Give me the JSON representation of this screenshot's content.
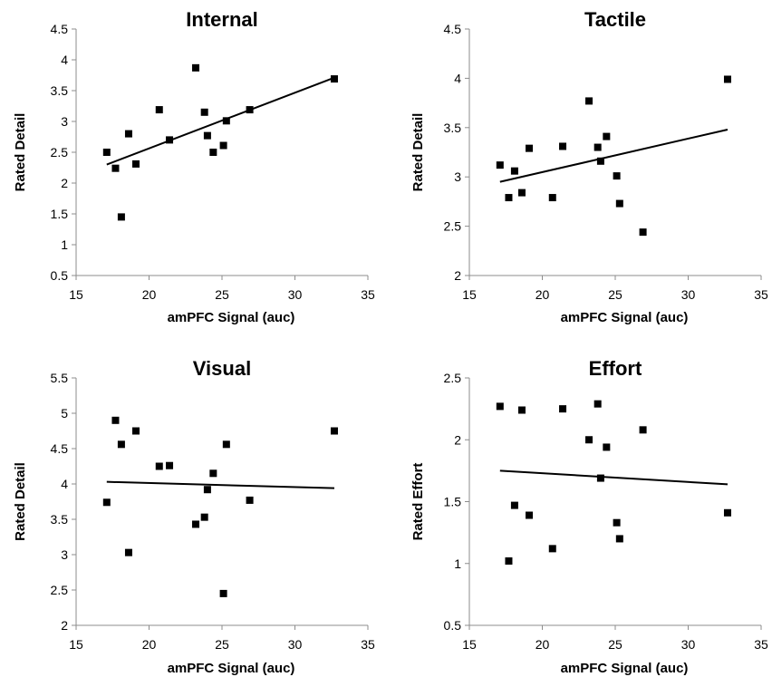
{
  "chart_data": [
    {
      "type": "scatter",
      "title": "Internal",
      "xlabel": "amPFC Signal (auc)",
      "ylabel": "Rated Detail",
      "xlim": [
        15,
        35
      ],
      "ylim": [
        0.5,
        4.5
      ],
      "xticks": [
        "15",
        "20",
        "25",
        "30",
        "35"
      ],
      "yticks": [
        "0.5",
        "1",
        "1.5",
        "2",
        "2.5",
        "3",
        "3.5",
        "4",
        "4.5"
      ],
      "points": [
        {
          "x": 17.1,
          "y": 2.5
        },
        {
          "x": 17.7,
          "y": 2.24
        },
        {
          "x": 18.1,
          "y": 1.45
        },
        {
          "x": 18.6,
          "y": 2.8
        },
        {
          "x": 19.1,
          "y": 2.31
        },
        {
          "x": 20.7,
          "y": 3.19
        },
        {
          "x": 21.4,
          "y": 2.7
        },
        {
          "x": 23.2,
          "y": 3.87
        },
        {
          "x": 23.8,
          "y": 3.15
        },
        {
          "x": 24.0,
          "y": 2.77
        },
        {
          "x": 24.4,
          "y": 2.5
        },
        {
          "x": 25.1,
          "y": 2.61
        },
        {
          "x": 25.3,
          "y": 3.01
        },
        {
          "x": 26.9,
          "y": 3.19
        },
        {
          "x": 32.7,
          "y": 3.69
        }
      ],
      "trendline": {
        "x": [
          17.1,
          32.7
        ],
        "y": [
          2.3,
          3.71
        ]
      }
    },
    {
      "type": "scatter",
      "title": "Tactile",
      "xlabel": "amPFC Signal (auc)",
      "ylabel": "Rated Detail",
      "xlim": [
        15,
        35
      ],
      "ylim": [
        2,
        4.5
      ],
      "xticks": [
        "15",
        "20",
        "25",
        "30",
        "35"
      ],
      "yticks": [
        "2",
        "2.5",
        "3",
        "3.5",
        "4",
        "4.5"
      ],
      "points": [
        {
          "x": 17.1,
          "y": 3.12
        },
        {
          "x": 17.7,
          "y": 2.79
        },
        {
          "x": 18.1,
          "y": 3.06
        },
        {
          "x": 18.6,
          "y": 2.84
        },
        {
          "x": 19.1,
          "y": 3.29
        },
        {
          "x": 20.7,
          "y": 2.79
        },
        {
          "x": 21.4,
          "y": 3.31
        },
        {
          "x": 23.2,
          "y": 3.77
        },
        {
          "x": 23.8,
          "y": 3.3
        },
        {
          "x": 24.0,
          "y": 3.16
        },
        {
          "x": 24.4,
          "y": 3.41
        },
        {
          "x": 25.1,
          "y": 3.01
        },
        {
          "x": 25.3,
          "y": 2.73
        },
        {
          "x": 26.9,
          "y": 2.44
        },
        {
          "x": 32.7,
          "y": 3.99
        }
      ],
      "trendline": {
        "x": [
          17.1,
          32.7
        ],
        "y": [
          2.95,
          3.48
        ]
      }
    },
    {
      "type": "scatter",
      "title": "Visual",
      "xlabel": "amPFC Signal (auc)",
      "ylabel": "Rated Detail",
      "xlim": [
        15,
        35
      ],
      "ylim": [
        2,
        5.5
      ],
      "xticks": [
        "15",
        "20",
        "25",
        "30",
        "35"
      ],
      "yticks": [
        "2",
        "2.5",
        "3",
        "3.5",
        "4",
        "4.5",
        "5",
        "5.5"
      ],
      "points": [
        {
          "x": 17.1,
          "y": 3.74
        },
        {
          "x": 17.7,
          "y": 4.9
        },
        {
          "x": 18.1,
          "y": 4.56
        },
        {
          "x": 18.6,
          "y": 3.03
        },
        {
          "x": 19.1,
          "y": 4.75
        },
        {
          "x": 20.7,
          "y": 4.25
        },
        {
          "x": 21.4,
          "y": 4.26
        },
        {
          "x": 23.2,
          "y": 3.43
        },
        {
          "x": 23.8,
          "y": 3.53
        },
        {
          "x": 24.0,
          "y": 3.92
        },
        {
          "x": 24.4,
          "y": 4.15
        },
        {
          "x": 25.1,
          "y": 2.45
        },
        {
          "x": 25.3,
          "y": 4.56
        },
        {
          "x": 26.9,
          "y": 3.77
        },
        {
          "x": 32.7,
          "y": 4.75
        }
      ],
      "trendline": {
        "x": [
          17.1,
          32.7
        ],
        "y": [
          4.03,
          3.94
        ]
      }
    },
    {
      "type": "scatter",
      "title": "Effort",
      "xlabel": "amPFC Signal (auc)",
      "ylabel": "Rated Effort",
      "xlim": [
        15,
        35
      ],
      "ylim": [
        0.5,
        2.5
      ],
      "xticks": [
        "15",
        "20",
        "25",
        "30",
        "35"
      ],
      "yticks": [
        "0.5",
        "1",
        "1.5",
        "2",
        "2.5"
      ],
      "points": [
        {
          "x": 17.1,
          "y": 2.27
        },
        {
          "x": 17.7,
          "y": 1.02
        },
        {
          "x": 18.1,
          "y": 1.47
        },
        {
          "x": 18.6,
          "y": 2.24
        },
        {
          "x": 19.1,
          "y": 1.39
        },
        {
          "x": 20.7,
          "y": 1.12
        },
        {
          "x": 21.4,
          "y": 2.25
        },
        {
          "x": 23.2,
          "y": 2.0
        },
        {
          "x": 23.8,
          "y": 2.29
        },
        {
          "x": 24.0,
          "y": 1.69
        },
        {
          "x": 24.4,
          "y": 1.94
        },
        {
          "x": 25.1,
          "y": 1.33
        },
        {
          "x": 25.3,
          "y": 1.2
        },
        {
          "x": 26.9,
          "y": 2.08
        },
        {
          "x": 32.7,
          "y": 1.41
        }
      ],
      "trendline": {
        "x": [
          17.1,
          32.7
        ],
        "y": [
          1.75,
          1.64
        ]
      }
    }
  ]
}
